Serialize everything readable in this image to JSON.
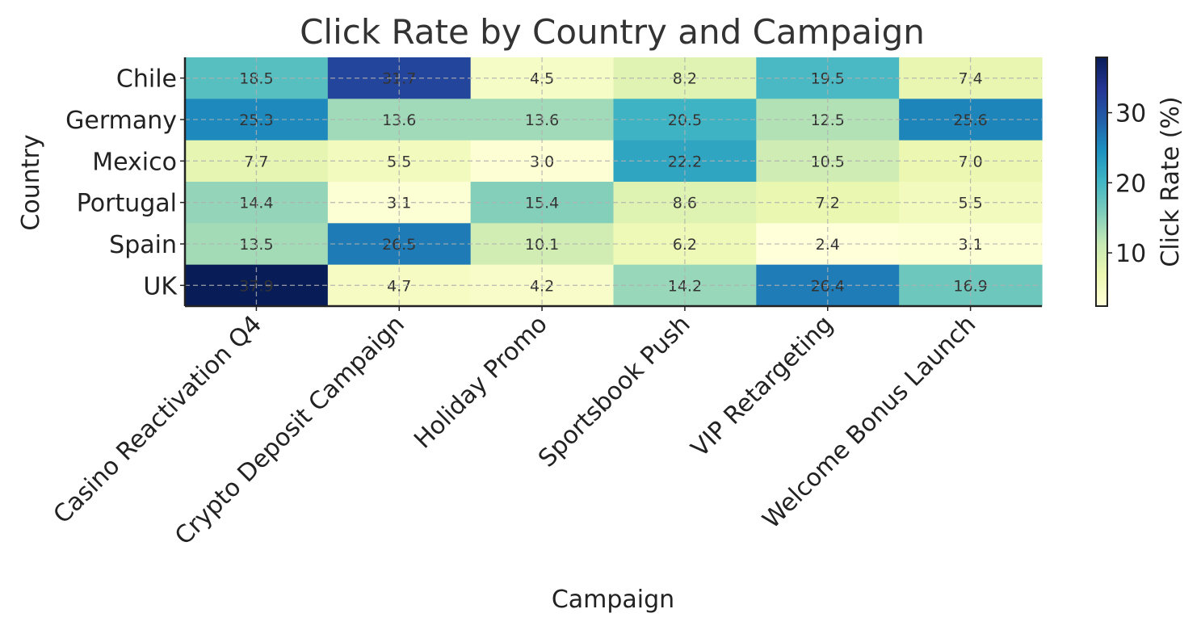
{
  "chart_data": {
    "type": "heatmap",
    "title": "Click Rate by Country and Campaign",
    "xlabel": "Campaign",
    "ylabel": "Country",
    "x_categories": [
      "Casino Reactivation Q4",
      "Crypto Deposit Campaign",
      "Holiday Promo",
      "Sportsbook Push",
      "VIP Retargeting",
      "Welcome Bonus Launch"
    ],
    "y_categories": [
      "Chile",
      "Germany",
      "Mexico",
      "Portugal",
      "Spain",
      "UK"
    ],
    "values": [
      [
        18.5,
        31.7,
        4.5,
        8.2,
        19.5,
        7.4
      ],
      [
        25.3,
        13.6,
        13.6,
        20.5,
        12.5,
        25.6
      ],
      [
        7.7,
        5.5,
        3.0,
        22.2,
        10.5,
        7.0
      ],
      [
        14.4,
        3.1,
        15.4,
        8.6,
        7.2,
        5.5
      ],
      [
        13.5,
        26.5,
        10.1,
        6.2,
        2.4,
        3.1
      ],
      [
        37.9,
        4.7,
        4.2,
        14.2,
        26.4,
        16.9
      ]
    ],
    "value_range": [
      2.4,
      37.9
    ],
    "colormap": "YlGnBu",
    "grid": true,
    "colorbar": {
      "label": "Click Rate (%)",
      "ticks": [
        10,
        20,
        30
      ]
    }
  }
}
